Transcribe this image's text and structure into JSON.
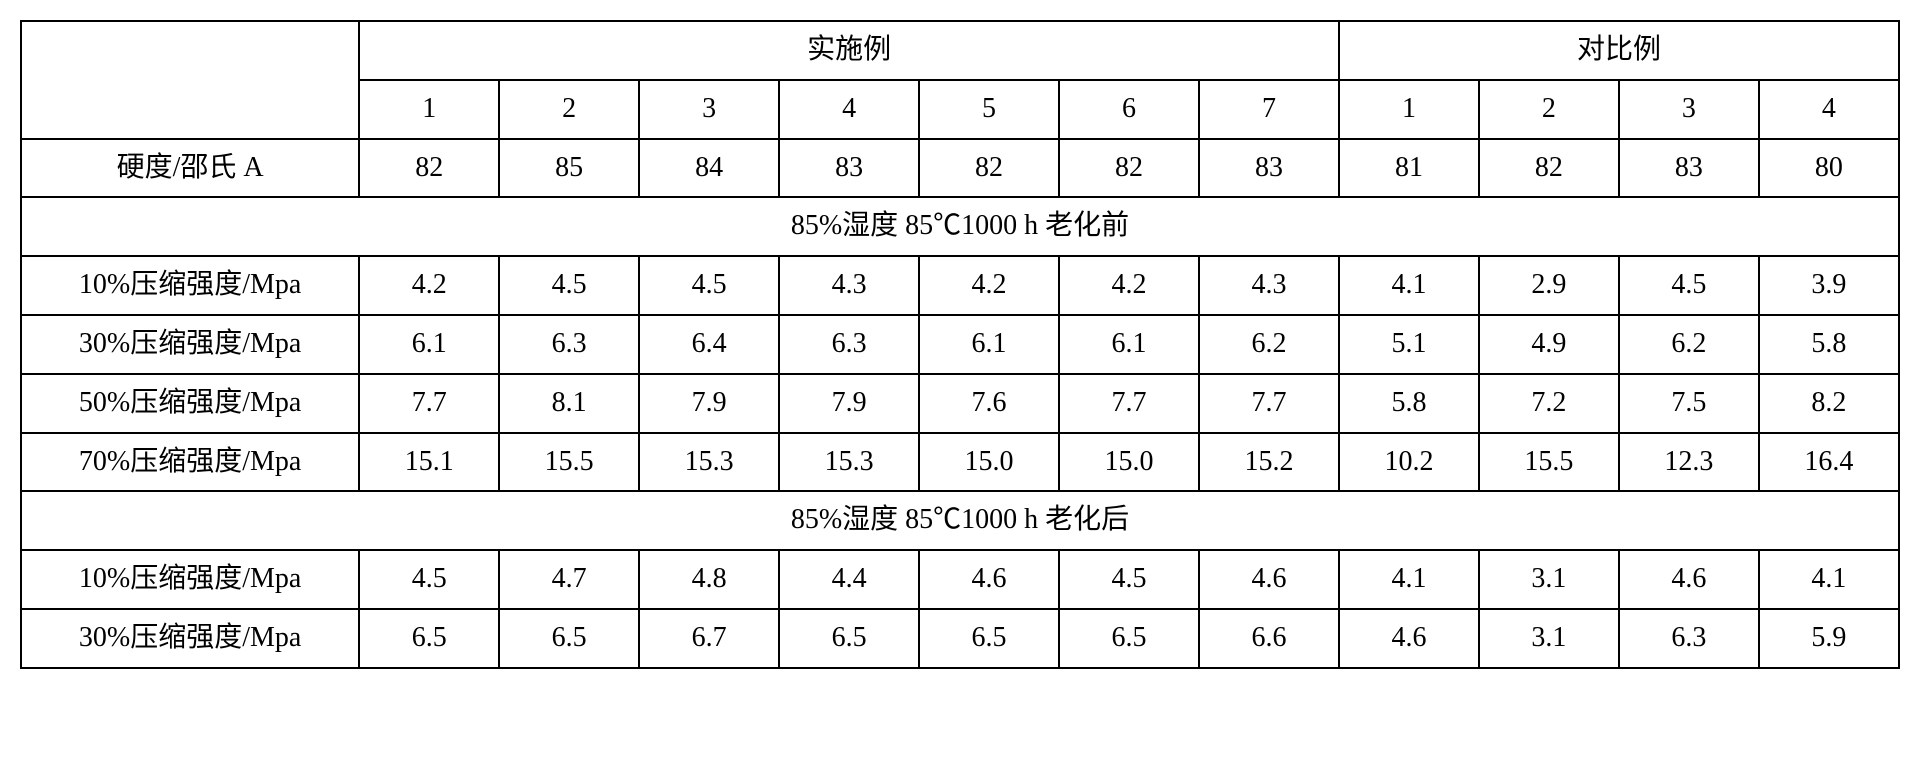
{
  "headers": {
    "group_example": "实施例",
    "group_compare": "对比例",
    "example_nums": [
      "1",
      "2",
      "3",
      "4",
      "5",
      "6",
      "7"
    ],
    "compare_nums": [
      "1",
      "2",
      "3",
      "4"
    ]
  },
  "row_hardness": {
    "label": "硬度/邵氏 A",
    "vals": [
      "82",
      "85",
      "84",
      "83",
      "82",
      "82",
      "83",
      "81",
      "82",
      "83",
      "80"
    ]
  },
  "section_before": "85%湿度 85℃1000 h 老化前",
  "rows_before": [
    {
      "label": "10%压缩强度/Mpa",
      "vals": [
        "4.2",
        "4.5",
        "4.5",
        "4.3",
        "4.2",
        "4.2",
        "4.3",
        "4.1",
        "2.9",
        "4.5",
        "3.9"
      ]
    },
    {
      "label": "30%压缩强度/Mpa",
      "vals": [
        "6.1",
        "6.3",
        "6.4",
        "6.3",
        "6.1",
        "6.1",
        "6.2",
        "5.1",
        "4.9",
        "6.2",
        "5.8"
      ]
    },
    {
      "label": "50%压缩强度/Mpa",
      "vals": [
        "7.7",
        "8.1",
        "7.9",
        "7.9",
        "7.6",
        "7.7",
        "7.7",
        "5.8",
        "7.2",
        "7.5",
        "8.2"
      ]
    },
    {
      "label": "70%压缩强度/Mpa",
      "vals": [
        "15.1",
        "15.5",
        "15.3",
        "15.3",
        "15.0",
        "15.0",
        "15.2",
        "10.2",
        "15.5",
        "12.3",
        "16.4"
      ]
    }
  ],
  "section_after": "85%湿度 85℃1000 h 老化后",
  "rows_after": [
    {
      "label": "10%压缩强度/Mpa",
      "vals": [
        "4.5",
        "4.7",
        "4.8",
        "4.4",
        "4.6",
        "4.5",
        "4.6",
        "4.1",
        "3.1",
        "4.6",
        "4.1"
      ]
    },
    {
      "label": "30%压缩强度/Mpa",
      "vals": [
        "6.5",
        "6.5",
        "6.7",
        "6.5",
        "6.5",
        "6.5",
        "6.6",
        "4.6",
        "3.1",
        "6.3",
        "5.9"
      ]
    }
  ]
}
